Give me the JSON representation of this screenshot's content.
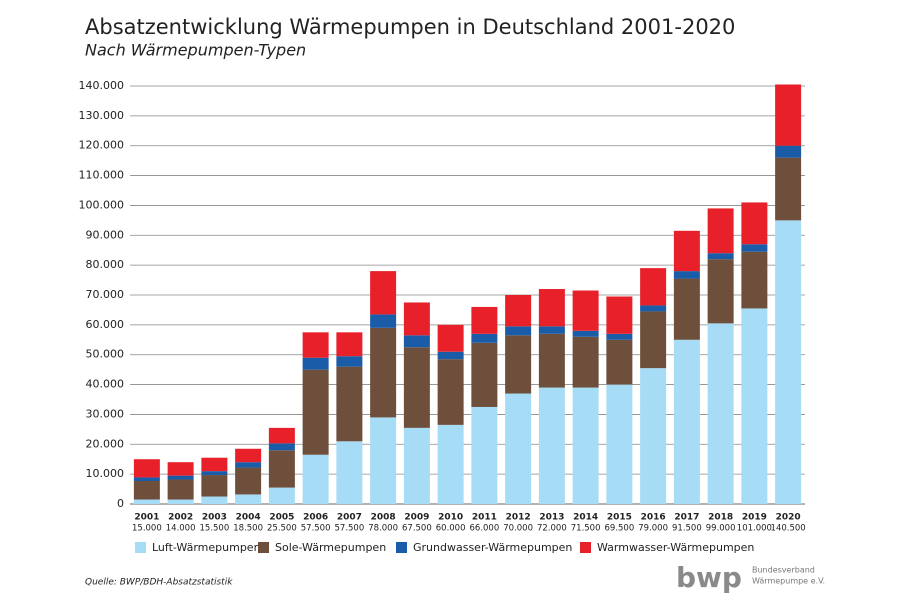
{
  "chart_data": {
    "type": "stacked_bar",
    "title": "Absatzentwicklung Wärmepumpen in Deutschland 2001-2020",
    "subtitle": "Nach Wärmepumpen-Typen",
    "categories": [
      "2001",
      "2002",
      "2003",
      "2004",
      "2005",
      "2006",
      "2007",
      "2008",
      "2009",
      "2010",
      "2011",
      "2012",
      "2013",
      "2014",
      "2015",
      "2016",
      "2017",
      "2018",
      "2019",
      "2020"
    ],
    "category_totals": [
      "15.000",
      "14.000",
      "15.500",
      "18.500",
      "25.500",
      "57.500",
      "57.500",
      "78.000",
      "67.500",
      "60.000",
      "66.000",
      "70.000",
      "72.000",
      "71.500",
      "69.500",
      "79.000",
      "91.500",
      "99.000",
      "101.000",
      "140.500"
    ],
    "series": [
      {
        "name": "Luft-Wärmepumpen",
        "color": "#a6dcf5",
        "values": [
          1500,
          1500,
          2500,
          3200,
          5500,
          16500,
          21000,
          29000,
          25500,
          26500,
          32500,
          37000,
          39000,
          39000,
          40000,
          45500,
          55000,
          60500,
          65500,
          95000
        ]
      },
      {
        "name": "Sole-Wärmepumpen",
        "color": "#6e4f3c",
        "values": [
          6200,
          6700,
          7200,
          9000,
          12500,
          28500,
          25000,
          30000,
          27000,
          22000,
          21500,
          19500,
          18000,
          17000,
          15000,
          19000,
          20500,
          21500,
          19000,
          21000
        ]
      },
      {
        "name": "Grundwasser-Wärmepumpen",
        "color": "#1a5ca8",
        "values": [
          1200,
          1300,
          1300,
          1800,
          2300,
          4000,
          3500,
          4500,
          4000,
          2500,
          3000,
          3000,
          2500,
          2000,
          2000,
          2000,
          2500,
          2000,
          2500,
          4000
        ]
      },
      {
        "name": "Warmwasser-Wärmepumpen",
        "color": "#e8202a",
        "values": [
          6100,
          4500,
          4500,
          4500,
          5200,
          8500,
          8000,
          14500,
          11000,
          9000,
          9000,
          10500,
          12500,
          13500,
          12500,
          12500,
          13500,
          15000,
          14000,
          20500
        ]
      }
    ],
    "ylim": [
      0,
      140000
    ],
    "yticks": [
      0,
      {
        "value": 10000,
        "label": "10.000"
      },
      {
        "value": 20000,
        "label": "20.000"
      },
      {
        "value": 30000,
        "label": "30.000"
      },
      {
        "value": 40000,
        "label": "40.000"
      },
      {
        "value": 50000,
        "label": "50.000"
      },
      {
        "value": 60000,
        "label": "60.000"
      },
      {
        "value": 70000,
        "label": "70.000"
      },
      {
        "value": 80000,
        "label": "80.000"
      },
      {
        "value": 90000,
        "label": "90.000"
      },
      {
        "value": 100000,
        "label": "100.000"
      },
      {
        "value": 110000,
        "label": "110.000"
      },
      {
        "value": 120000,
        "label": "120.000"
      },
      {
        "value": 130000,
        "label": "130.000"
      },
      {
        "value": 140000,
        "label": "140.000"
      }
    ],
    "grid": true,
    "legend": "bottom"
  },
  "source": "Quelle: BWP/BDH-Absatzstatistik",
  "logo": {
    "mark": "bwp",
    "lines": [
      "Bundesverband",
      "Wärmepumpe e.V."
    ]
  }
}
